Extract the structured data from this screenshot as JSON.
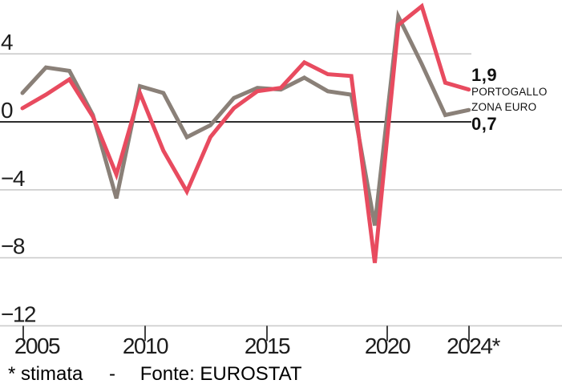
{
  "chart_data": {
    "type": "line",
    "title": "",
    "xlabel": "",
    "ylabel": "",
    "x": [
      2005,
      2006,
      2007,
      2008,
      2009,
      2010,
      2011,
      2012,
      2013,
      2014,
      2015,
      2016,
      2017,
      2018,
      2019,
      2020,
      2021,
      2022,
      2023,
      2024
    ],
    "series": [
      {
        "name": "ZONA EURO",
        "color": "#8a8078",
        "end_label": "0,7",
        "values": [
          1.7,
          3.2,
          3.0,
          0.4,
          -4.5,
          2.1,
          1.7,
          -0.9,
          -0.2,
          1.4,
          2.0,
          1.9,
          2.6,
          1.8,
          1.6,
          -6.1,
          6.2,
          3.4,
          0.4,
          0.7
        ]
      },
      {
        "name": "PORTOGALLO",
        "color": "#e84b5f",
        "end_label": "1,9",
        "values": [
          0.8,
          1.6,
          2.5,
          0.3,
          -3.1,
          1.7,
          -1.7,
          -4.1,
          -0.9,
          0.8,
          1.8,
          2.0,
          3.5,
          2.8,
          2.7,
          -8.3,
          5.7,
          6.8,
          2.3,
          1.9
        ]
      }
    ],
    "y_axis": {
      "ticks": [
        {
          "value": 4,
          "label": "4"
        },
        {
          "value": 0,
          "label": "0"
        },
        {
          "value": -4,
          "label": "−4"
        },
        {
          "value": -8,
          "label": "−8"
        },
        {
          "value": -12,
          "label": "−12"
        }
      ],
      "range": [
        -13,
        7.3
      ]
    },
    "x_axis": {
      "ticks": [
        {
          "label": "2005"
        },
        {
          "label": "2010"
        },
        {
          "label": "2015"
        },
        {
          "label": "2020"
        },
        {
          "label": "2024*"
        }
      ],
      "range": [
        2005,
        2024
      ]
    },
    "grid": "horizontal",
    "legend_position": "right-end-labels",
    "zero_line": true,
    "note": "* stimata",
    "source": "Fonte: EUROSTAT"
  },
  "end_labels": {
    "portugal_value": "1,9",
    "portugal_name": "PORTOGALLO",
    "eurozone_name": "ZONA EURO",
    "eurozone_value": "0,7"
  },
  "footer": {
    "note": "* stimata",
    "separator": "-",
    "source": "Fonte: EUROSTAT"
  },
  "colors": {
    "portugal_line": "#e84b5f",
    "eurozone_line": "#8a8078",
    "gridline": "#cbcbcb",
    "zero_axis": "#2d2d2d",
    "tick_mark": "#2f2f2f",
    "text": "#1d1d1d"
  }
}
